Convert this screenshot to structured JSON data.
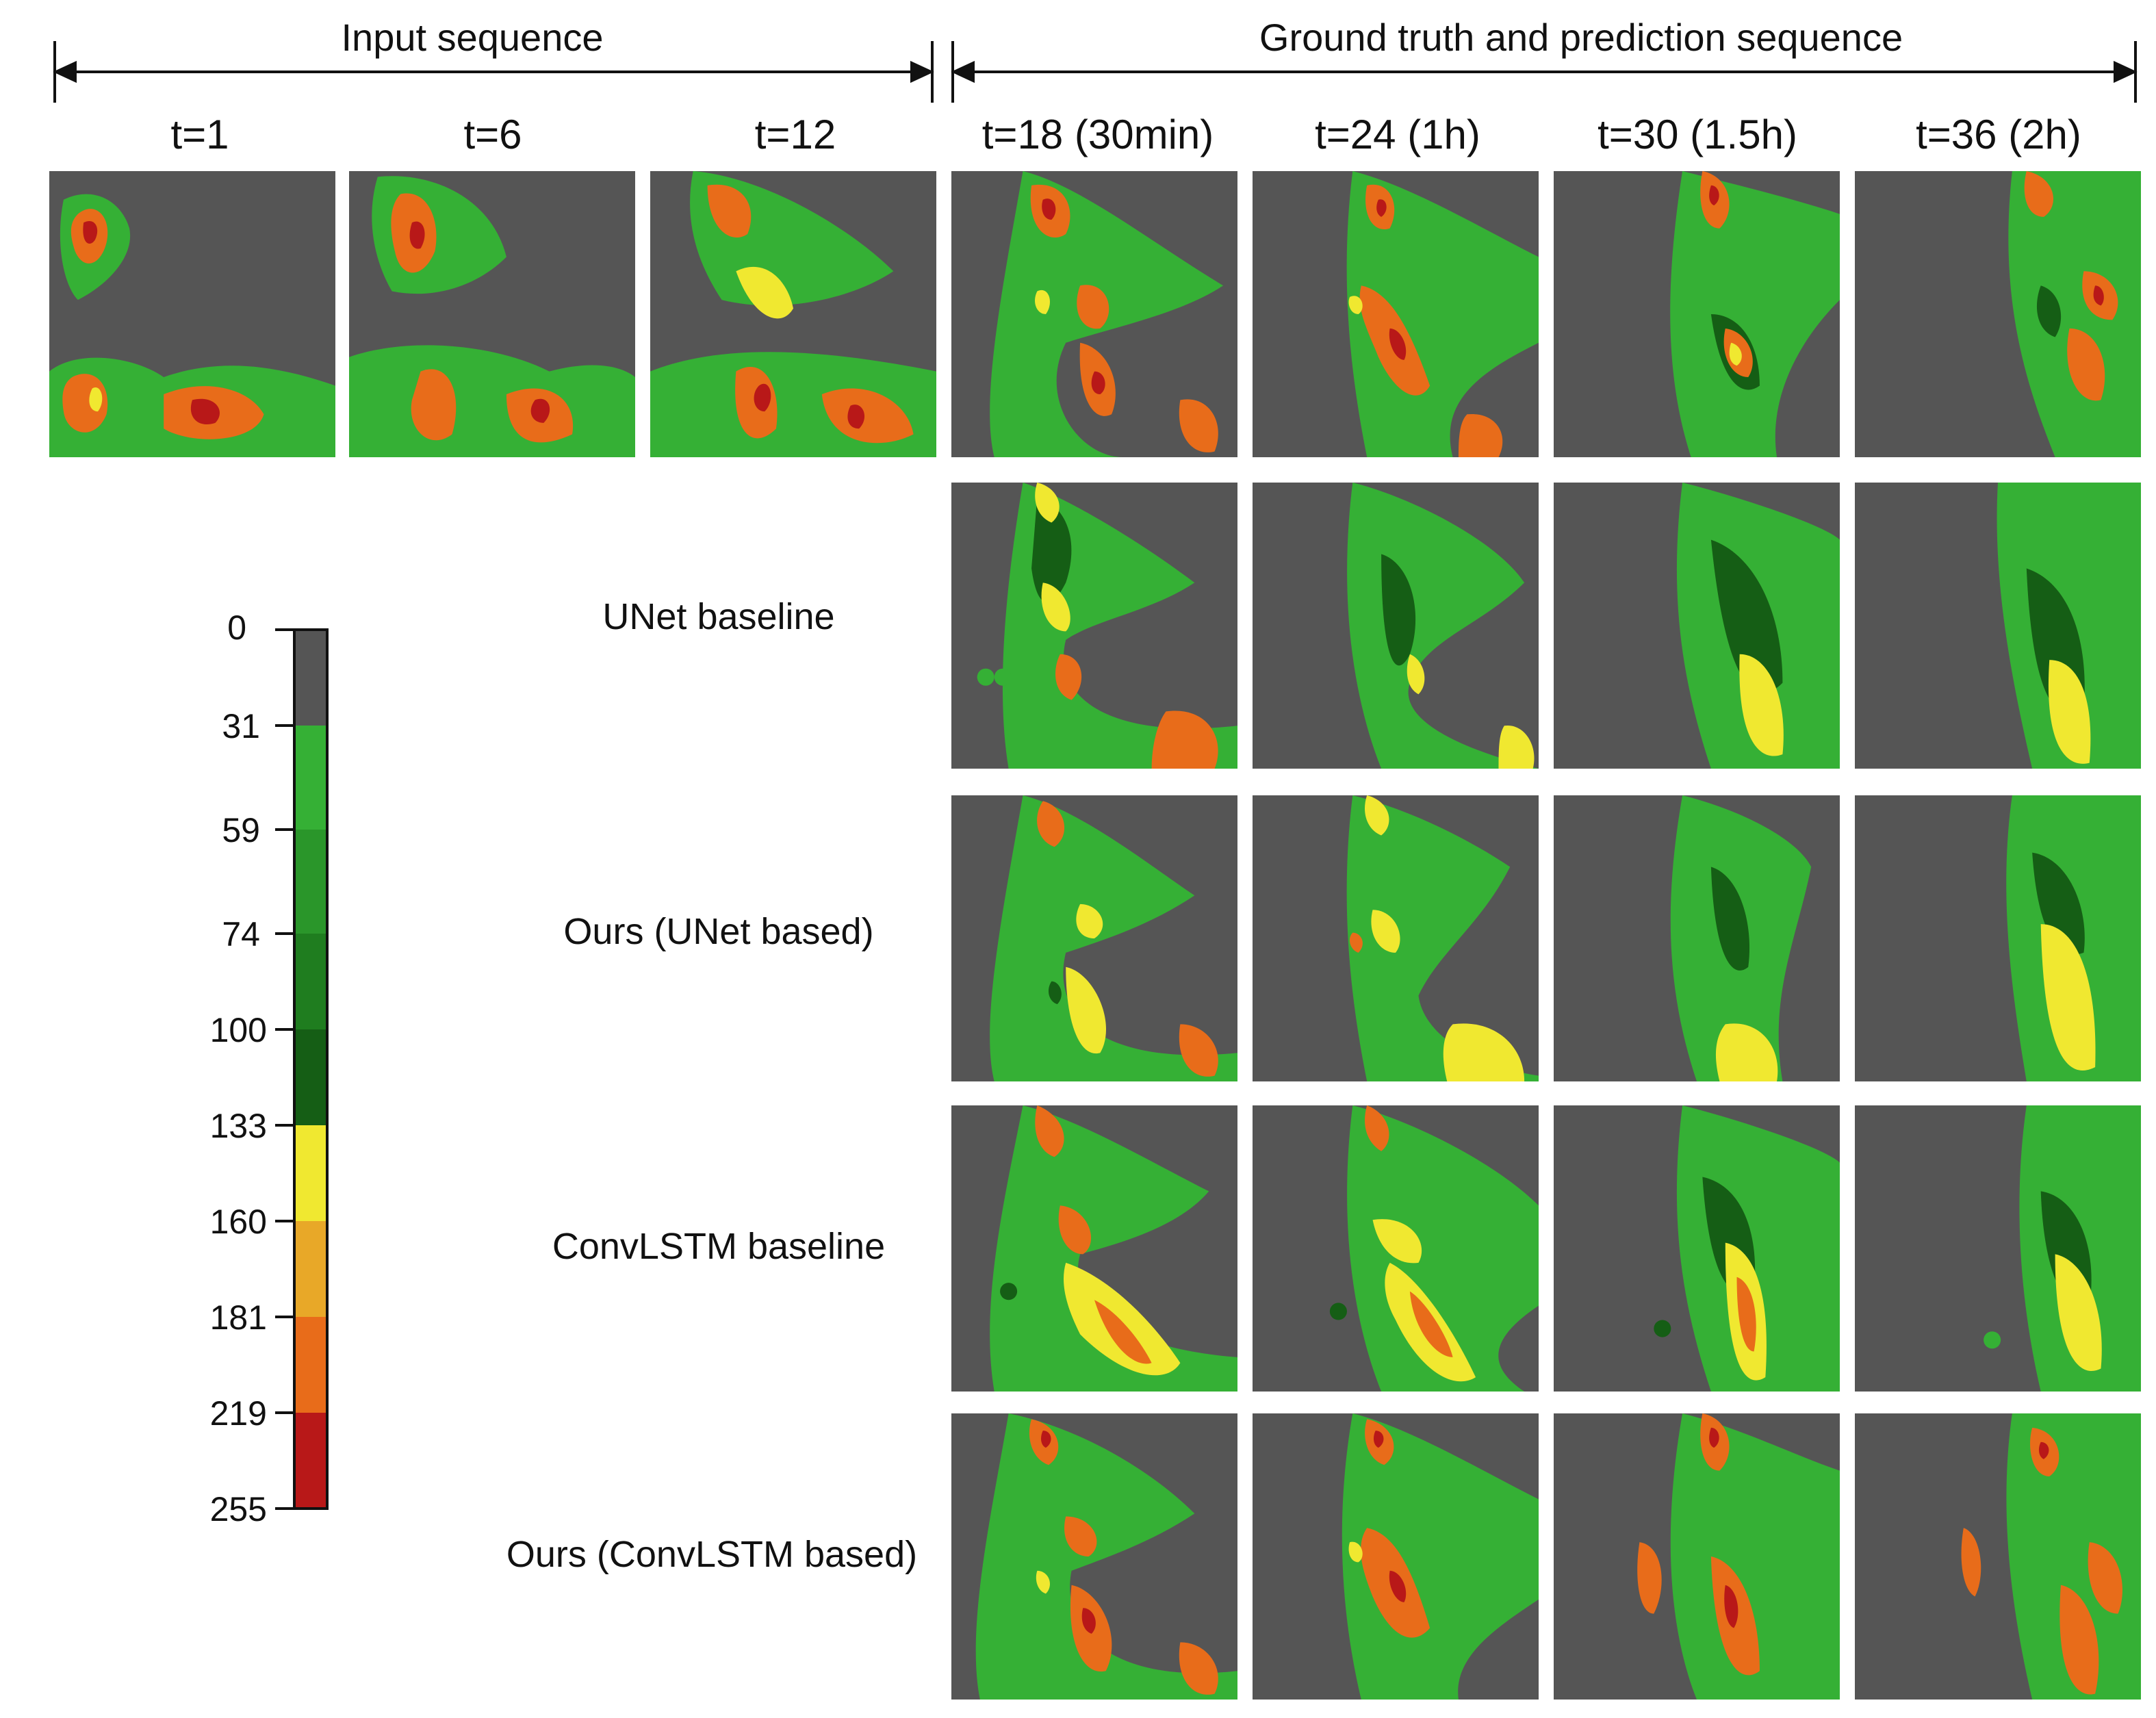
{
  "headers": {
    "input": "Input sequence",
    "output": "Ground truth and prediction sequence"
  },
  "columns": [
    "t=1",
    "t=6",
    "t=12",
    "t=18 (30min)",
    "t=24 (1h)",
    "t=30 (1.5h)",
    "t=36 (2h)"
  ],
  "rows": [
    "UNet baseline",
    "Ours (UNet based)",
    "ConvLSTM baseline",
    "Ours (ConvLSTM based)"
  ],
  "colorbar": {
    "ticks": [
      "0",
      "31",
      "59",
      "74",
      "100",
      "133",
      "160",
      "181",
      "219",
      "255"
    ],
    "colors": [
      "#555555",
      "#35b035",
      "#2a962a",
      "#1f7d1f",
      "#155e15",
      "#f0e830",
      "#e8a828",
      "#e86c1a",
      "#b81818"
    ]
  },
  "palette": {
    "bg": "#555555",
    "g1": "#35b035",
    "g2": "#1f7d1f",
    "g3": "#155e15",
    "yellow": "#f0e830",
    "orange": "#e86c1a",
    "red": "#b81818"
  }
}
